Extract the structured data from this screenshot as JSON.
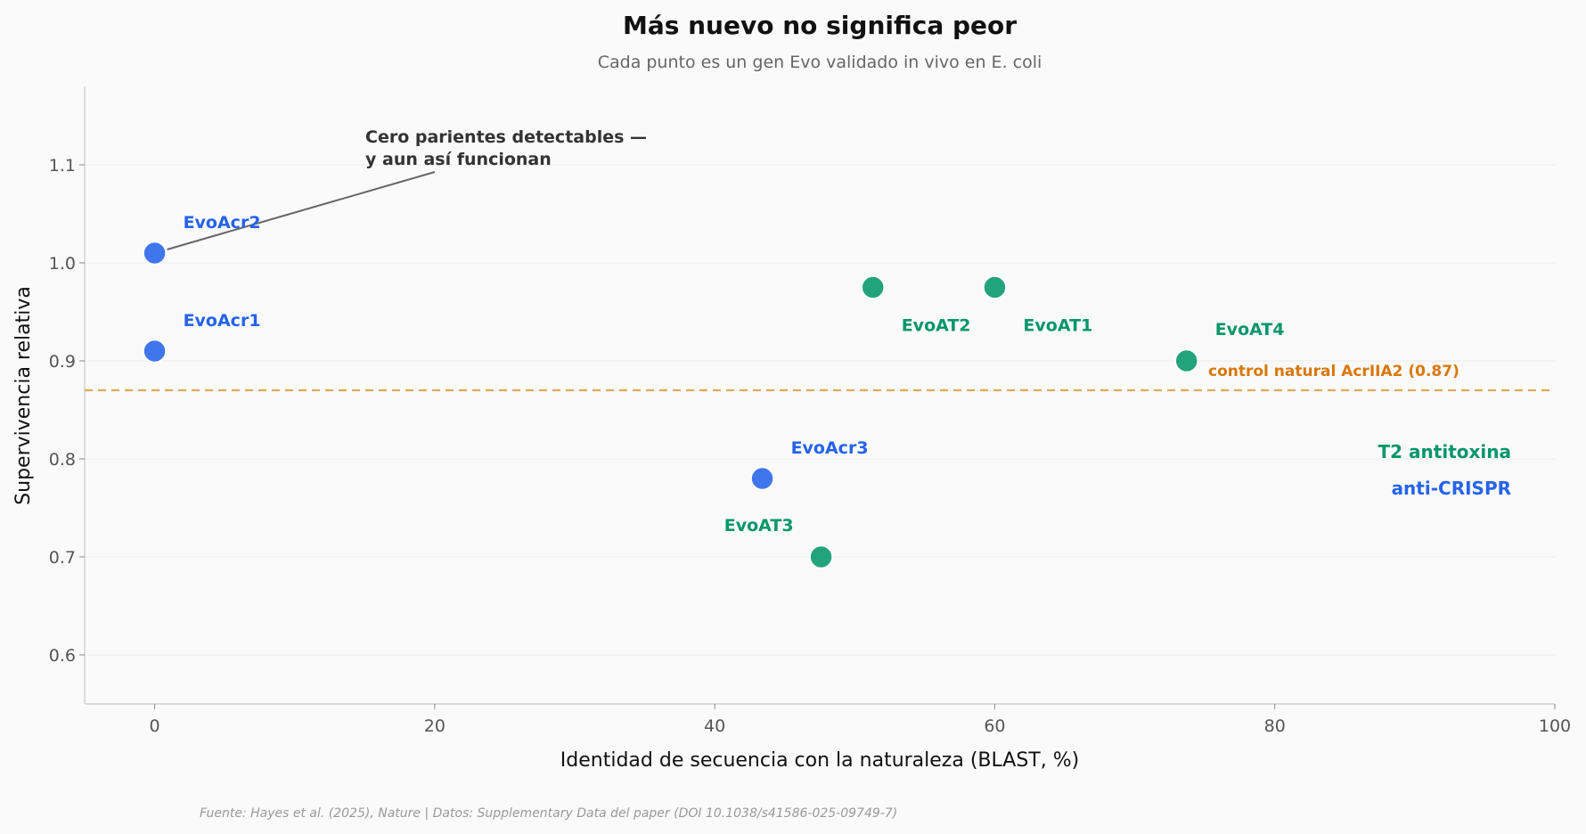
{
  "chart_data": {
    "type": "scatter",
    "title": "Más nuevo no significa peor",
    "subtitle": "Cada punto es un gen Evo validado in vivo en E. coli",
    "xlabel": "Identidad de secuencia con la naturaleza (BLAST, %)",
    "ylabel": "Supervivencia relativa",
    "xlim": [
      -5,
      100
    ],
    "ylim": [
      0.55,
      1.18
    ],
    "xticks": [
      0,
      20,
      40,
      60,
      80,
      100
    ],
    "yticks": [
      0.6,
      0.7,
      0.8,
      0.9,
      1.0,
      1.1
    ],
    "ytick_labels": [
      "0.6",
      "0.7",
      "0.8",
      "0.9",
      "1.0",
      "1.1"
    ],
    "grid": "horizontal",
    "series": [
      {
        "name": "anti-CRISPR",
        "color": "#2563eb",
        "points": [
          {
            "label": "EvoAcr2",
            "x": 0,
            "y": 1.01
          },
          {
            "label": "EvoAcr1",
            "x": 0,
            "y": 0.91
          },
          {
            "label": "EvoAcr3",
            "x": 43.4,
            "y": 0.78
          }
        ]
      },
      {
        "name": "T2 antitoxina",
        "color": "#059669",
        "points": [
          {
            "label": "EvoAT2",
            "x": 51.3,
            "y": 0.975
          },
          {
            "label": "EvoAT1",
            "x": 60.0,
            "y": 0.975
          },
          {
            "label": "EvoAT4",
            "x": 73.7,
            "y": 0.9
          },
          {
            "label": "EvoAT3",
            "x": 47.6,
            "y": 0.7
          }
        ]
      }
    ],
    "reference_line": {
      "y": 0.87,
      "label": "control natural AcrIIA2 (0.87)",
      "color": "#d97706"
    },
    "annotation": {
      "lines": [
        "Cero parientes detectables —",
        "y aun así funcionan"
      ],
      "target": "EvoAcr2"
    },
    "legend_location": "right",
    "source": "Fuente: Hayes et al. (2025), Nature | Datos: Supplementary Data del paper (DOI 10.1038/s41586-025-09749-7)"
  }
}
